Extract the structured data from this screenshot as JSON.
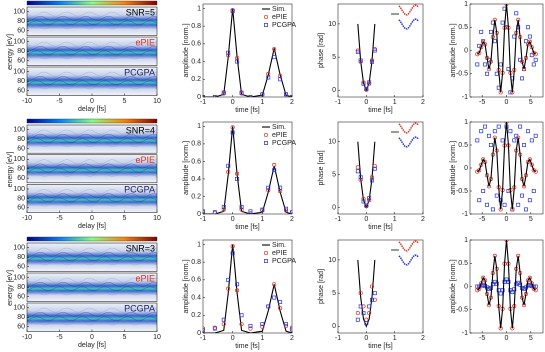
{
  "chart_data": [
    {
      "type": "spectrogram",
      "annotations": [
        "SNR=5",
        "ePIE",
        "PCGPA"
      ],
      "annotation_colors": [
        "#000000",
        "#e03020",
        "#1a1a60"
      ],
      "xlabel": "delay [fs]",
      "ylabel": "energy [eV]",
      "xlim": [
        -10,
        10
      ],
      "xticks": [
        -10,
        -5,
        0,
        5,
        10
      ],
      "ylim": [
        50,
        110
      ],
      "yticks": [
        60,
        80,
        100
      ]
    },
    {
      "type": "line",
      "xlabel": "time [fs]",
      "ylabel": "amplitude [norm.]",
      "xlim": [
        -1,
        2
      ],
      "xticks": [
        -1,
        0,
        1,
        2
      ],
      "ylim": [
        0,
        1.05
      ],
      "yticks": [
        0,
        0.2,
        0.4,
        0.6,
        0.8,
        1
      ],
      "legend": "upper right",
      "x": [
        -1,
        -0.6,
        -0.3,
        -0.15,
        0,
        0.15,
        0.3,
        0.6,
        1,
        1.2,
        1.4,
        1.6,
        1.8,
        2
      ],
      "series": [
        {
          "name": "Sim.",
          "color": "#000000",
          "style": "line",
          "values": [
            0,
            0,
            0.03,
            0.45,
            1,
            0.45,
            0.03,
            0,
            0.02,
            0.25,
            0.55,
            0.25,
            0.02,
            0
          ]
        },
        {
          "name": "ePIE",
          "color": "#e03020",
          "style": "markers",
          "marker": "o",
          "values": [
            0,
            0,
            0.04,
            0.47,
            0.98,
            0.44,
            0.04,
            0,
            0.03,
            0.26,
            0.54,
            0.24,
            0.03,
            0
          ]
        },
        {
          "name": "PCGPA",
          "color": "#2030e0",
          "style": "markers",
          "marker": "s",
          "values": [
            0,
            0,
            0.05,
            0.5,
            0.97,
            0.4,
            0.05,
            0,
            0.03,
            0.22,
            0.45,
            0.2,
            0.03,
            0
          ]
        }
      ]
    },
    {
      "type": "line",
      "xlabel": "time [fs]",
      "ylabel": "phase [rad]",
      "xlim": [
        -1,
        2
      ],
      "xticks": [
        -1,
        0,
        1,
        2
      ],
      "ylim": [
        -1,
        13
      ],
      "yticks": [
        0,
        5,
        10
      ],
      "x": [
        -0.3,
        -0.2,
        -0.1,
        0,
        0.1,
        0.2,
        0.3
      ],
      "series": [
        {
          "color": "#000000",
          "style": "line",
          "values": [
            10,
            4.4,
            1.1,
            0,
            1.1,
            4.4,
            10
          ]
        },
        {
          "color": "#e03020",
          "style": "markers",
          "marker": "o",
          "values": [
            6,
            4.3,
            1.2,
            0.1,
            1,
            4.5,
            6.2
          ]
        },
        {
          "color": "#2030e0",
          "style": "markers",
          "marker": "s",
          "values": [
            5.8,
            4.5,
            1,
            0.2,
            1.2,
            4.3,
            6
          ]
        }
      ]
    },
    {
      "type": "line",
      "ylabel": "amplitude [norm.]",
      "xlim": [
        -7.5,
        7.5
      ],
      "xticks": [
        -5,
        0,
        5
      ],
      "ylim": [
        -1,
        1
      ],
      "yticks": [
        -1,
        -0.5,
        0,
        0.5,
        1
      ],
      "x": [
        -6,
        -5.6,
        -5.2,
        -4.8,
        -4.4,
        -4,
        -3.6,
        -3.2,
        -2.8,
        -2.4,
        -2,
        -1.6,
        -1.2,
        -0.8,
        -0.4,
        0,
        0.4,
        0.8,
        1.2,
        1.6,
        2,
        2.4,
        2.8,
        3.2,
        3.6,
        4,
        4.4,
        4.8,
        5.2,
        5.6,
        6
      ],
      "series": [
        {
          "color": "#2030e0",
          "style": "markers",
          "marker": "s",
          "values": [
            -0.3,
            0.1,
            0.4,
            0.2,
            -0.3,
            -0.5,
            -0.2,
            0.4,
            0.6,
            0.2,
            -0.5,
            -0.8,
            -0.3,
            0.6,
            0.9,
            0.5,
            -0.4,
            -0.9,
            -0.6,
            0.3,
            0.8,
            0.5,
            -0.2,
            -0.6,
            -0.4,
            0.2,
            0.5,
            0.3,
            -0.1,
            -0.3,
            -0.2
          ]
        },
        {
          "color": "#e03020",
          "style": "markers",
          "marker": "o",
          "values": [
            -0.08,
            -0.05,
            0.07,
            0.19,
            0.13,
            -0.16,
            -0.4,
            -0.24,
            0.29,
            0.66,
            0.38,
            -0.42,
            -0.9,
            -0.48,
            0.49,
            1.0,
            0.49,
            -0.48,
            -0.9,
            -0.42,
            0.38,
            0.66,
            0.29,
            -0.24,
            -0.4,
            -0.16,
            0.13,
            0.19,
            0.07,
            -0.05,
            -0.08
          ]
        },
        {
          "color": "#000000",
          "style": "line",
          "values": [
            -0.08,
            -0.05,
            0.07,
            0.19,
            0.13,
            -0.16,
            -0.4,
            -0.24,
            0.29,
            0.66,
            0.38,
            -0.42,
            -0.9,
            -0.48,
            0.49,
            1.0,
            0.49,
            -0.48,
            -0.9,
            -0.42,
            0.38,
            0.66,
            0.29,
            -0.24,
            -0.4,
            -0.16,
            0.13,
            0.19,
            0.07,
            -0.05,
            -0.08
          ]
        }
      ]
    },
    {
      "type": "spectrogram",
      "annotations": [
        "SNR=4",
        "ePIE",
        "PCGPA"
      ],
      "annotation_colors": [
        "#000000",
        "#e03020",
        "#1a1a60"
      ],
      "xlabel": "delay [fs]",
      "ylabel": "energy [eV]",
      "xlim": [
        -10,
        10
      ],
      "xticks": [
        -10,
        -5,
        0,
        5,
        10
      ],
      "ylim": [
        50,
        110
      ],
      "yticks": [
        60,
        80,
        100
      ]
    },
    {
      "type": "line",
      "xlabel": "time [fs]",
      "ylabel": "amplitude [norm.]",
      "xlim": [
        -1,
        2
      ],
      "xticks": [
        -1,
        0,
        1,
        2
      ],
      "ylim": [
        0,
        1.05
      ],
      "yticks": [
        0,
        0.2,
        0.4,
        0.6,
        0.8,
        1
      ],
      "legend": "upper right",
      "x": [
        -1,
        -0.6,
        -0.3,
        -0.15,
        0,
        0.15,
        0.3,
        0.6,
        1,
        1.2,
        1.4,
        1.6,
        1.8,
        2
      ],
      "series": [
        {
          "name": "Sim.",
          "color": "#000000",
          "style": "line",
          "values": [
            0,
            0,
            0.03,
            0.45,
            1,
            0.45,
            0.03,
            0,
            0.02,
            0.25,
            0.55,
            0.25,
            0.02,
            0
          ]
        },
        {
          "name": "ePIE",
          "color": "#e03020",
          "style": "markers",
          "marker": "o",
          "values": [
            0.02,
            0.01,
            0.05,
            0.48,
            0.99,
            0.46,
            0.05,
            0.01,
            0.04,
            0.27,
            0.56,
            0.26,
            0.04,
            0.02
          ]
        },
        {
          "name": "PCGPA",
          "color": "#2030e0",
          "style": "markers",
          "marker": "s",
          "values": [
            0.03,
            0.02,
            0.08,
            0.55,
            0.93,
            0.4,
            0.08,
            0.03,
            0.05,
            0.3,
            0.5,
            0.3,
            0.06,
            0.02
          ]
        }
      ]
    },
    {
      "type": "line",
      "xlabel": "time [fs]",
      "ylabel": "phase [rad]",
      "xlim": [
        -1,
        2
      ],
      "xticks": [
        -1,
        0,
        1,
        2
      ],
      "ylim": [
        -1,
        13
      ],
      "yticks": [
        0,
        5,
        10
      ],
      "x": [
        -0.3,
        -0.2,
        -0.1,
        0,
        0.1,
        0.2,
        0.3
      ],
      "series": [
        {
          "color": "#000000",
          "style": "line",
          "values": [
            10,
            4.4,
            1.1,
            0,
            1.1,
            4.4,
            10
          ]
        },
        {
          "color": "#e03020",
          "style": "markers",
          "marker": "o",
          "values": [
            6.1,
            4.2,
            1.3,
            0.2,
            1.1,
            4.6,
            6.3
          ]
        },
        {
          "color": "#2030e0",
          "style": "markers",
          "marker": "s",
          "values": [
            5.5,
            4.6,
            0.9,
            0.3,
            1.4,
            4.1,
            5.9
          ]
        }
      ]
    },
    {
      "type": "line",
      "ylabel": "amplitude [norm.]",
      "xlim": [
        -7.5,
        7.5
      ],
      "xticks": [
        -5,
        0,
        5
      ],
      "ylim": [
        -1,
        1
      ],
      "yticks": [
        -1,
        -0.5,
        0,
        0.5,
        1
      ],
      "x": [
        -6,
        -5.6,
        -5.2,
        -4.8,
        -4.4,
        -4,
        -3.6,
        -3.2,
        -2.8,
        -2.4,
        -2,
        -1.6,
        -1.2,
        -0.8,
        -0.4,
        0,
        0.4,
        0.8,
        1.2,
        1.6,
        2,
        2.4,
        2.8,
        3.2,
        3.6,
        4,
        4.4,
        4.8,
        5.2,
        5.6,
        6
      ],
      "series": [
        {
          "color": "#2030e0",
          "style": "markers",
          "marker": "s",
          "values": [
            0.6,
            -0.7,
            0.8,
            -0.5,
            0.9,
            -0.8,
            0.7,
            0.5,
            -0.9,
            0.8,
            -0.6,
            0.9,
            -0.7,
            0.6,
            -0.8,
            0.9,
            -0.5,
            0.8,
            -0.9,
            0.6,
            0.7,
            -0.8,
            0.9,
            -0.6,
            0.5,
            -0.9,
            0.8,
            -0.7,
            0.6,
            -0.5,
            0.7
          ]
        },
        {
          "color": "#e03020",
          "style": "markers",
          "marker": "o",
          "values": [
            -0.08,
            -0.05,
            0.07,
            0.19,
            0.13,
            -0.16,
            -0.4,
            -0.24,
            0.29,
            0.66,
            0.38,
            -0.42,
            -0.9,
            -0.48,
            0.49,
            1.0,
            0.49,
            -0.48,
            -0.9,
            -0.42,
            0.38,
            0.66,
            0.29,
            -0.24,
            -0.4,
            -0.16,
            0.13,
            0.19,
            0.07,
            -0.05,
            -0.08
          ]
        },
        {
          "color": "#000000",
          "style": "line",
          "values": [
            -0.08,
            -0.05,
            0.07,
            0.19,
            0.13,
            -0.16,
            -0.4,
            -0.24,
            0.29,
            0.66,
            0.38,
            -0.42,
            -0.9,
            -0.48,
            0.49,
            1.0,
            0.49,
            -0.48,
            -0.9,
            -0.42,
            0.38,
            0.66,
            0.29,
            -0.24,
            -0.4,
            -0.16,
            0.13,
            0.19,
            0.07,
            -0.05,
            -0.08
          ]
        }
      ]
    },
    {
      "type": "spectrogram",
      "annotations": [
        "SNR=3",
        "ePIE",
        "PCGPA"
      ],
      "annotation_colors": [
        "#000000",
        "#e03020",
        "#1a1a60"
      ],
      "xlabel": "delay [fs]",
      "ylabel": "energy [eV]",
      "xlim": [
        -10,
        10
      ],
      "xticks": [
        -10,
        -5,
        0,
        5,
        10
      ],
      "ylim": [
        50,
        110
      ],
      "yticks": [
        60,
        80,
        100
      ]
    },
    {
      "type": "line",
      "xlabel": "time [fs]",
      "ylabel": "amplitude [norm.]",
      "xlim": [
        -1,
        2
      ],
      "xticks": [
        -1,
        0,
        1,
        2
      ],
      "ylim": [
        0,
        1.05
      ],
      "yticks": [
        0,
        0.2,
        0.4,
        0.6,
        0.8,
        1
      ],
      "legend": "upper right",
      "x": [
        -1,
        -0.6,
        -0.3,
        -0.15,
        0,
        0.15,
        0.3,
        0.6,
        1,
        1.2,
        1.4,
        1.6,
        1.8,
        2
      ],
      "series": [
        {
          "name": "Sim.",
          "color": "#000000",
          "style": "line",
          "values": [
            0,
            0,
            0.03,
            0.45,
            1,
            0.45,
            0.03,
            0,
            0.02,
            0.25,
            0.55,
            0.25,
            0.02,
            0
          ]
        },
        {
          "name": "ePIE",
          "color": "#e03020",
          "style": "markers",
          "marker": "o",
          "values": [
            0.05,
            0.06,
            0.1,
            0.5,
            0.98,
            0.48,
            0.1,
            0.05,
            0.07,
            0.3,
            0.55,
            0.28,
            0.08,
            0.06
          ]
        },
        {
          "name": "PCGPA",
          "color": "#2030e0",
          "style": "markers",
          "marker": "s",
          "values": [
            0.03,
            0.05,
            0.15,
            0.6,
            0.9,
            0.55,
            0.2,
            0.08,
            0.1,
            0.3,
            0.4,
            0.35,
            0.1,
            0.04
          ]
        }
      ]
    },
    {
      "type": "line",
      "xlabel": "time [fs]",
      "ylabel": "phase [rad]",
      "xlim": [
        -1,
        2
      ],
      "xticks": [
        -1,
        0,
        1,
        2
      ],
      "ylim": [
        -1,
        13
      ],
      "yticks": [
        0,
        5,
        10
      ],
      "x": [
        -0.3,
        -0.2,
        -0.1,
        0,
        0.1,
        0.2,
        0.3
      ],
      "series": [
        {
          "color": "#000000",
          "style": "line",
          "values": [
            10,
            4.4,
            1.1,
            0,
            1.1,
            4.4,
            10
          ]
        },
        {
          "color": "#e03020",
          "style": "markers",
          "marker": "o",
          "values": [
            2,
            5,
            3,
            1,
            2,
            6,
            4
          ]
        },
        {
          "color": "#2030e0",
          "style": "markers",
          "marker": "s",
          "values": [
            1,
            3,
            2,
            0.5,
            3,
            4,
            5
          ]
        }
      ]
    },
    {
      "type": "line",
      "ylabel": "amplitude [norm.]",
      "xlim": [
        -7.5,
        7.5
      ],
      "xticks": [
        -5,
        0,
        5
      ],
      "ylim": [
        -1,
        1
      ],
      "yticks": [
        -1,
        -0.5,
        0,
        0.5,
        1
      ],
      "x": [
        -6,
        -5.6,
        -5.2,
        -4.8,
        -4.4,
        -4,
        -3.6,
        -3.2,
        -2.8,
        -2.4,
        -2,
        -1.6,
        -1.2,
        -0.8,
        -0.4,
        0,
        0.4,
        0.8,
        1.2,
        1.6,
        2,
        2.4,
        2.8,
        3.2,
        3.6,
        4,
        4.4,
        4.8,
        5.2,
        5.6,
        6
      ],
      "series": [
        {
          "color": "#2030e0",
          "style": "markers",
          "marker": "s",
          "values": [
            0,
            0,
            0.02,
            0.03,
            0.01,
            -0.02,
            -0.05,
            -0.03,
            0.05,
            0.1,
            0.06,
            -0.08,
            -0.15,
            -0.08,
            0.1,
            0.15,
            0.1,
            -0.08,
            -0.12,
            -0.06,
            0.05,
            0.08,
            0.04,
            -0.03,
            -0.05,
            -0.02,
            0.02,
            0.03,
            0.01,
            0,
            0
          ]
        },
        {
          "color": "#e03020",
          "style": "markers",
          "marker": "o",
          "values": [
            -0.08,
            -0.05,
            0.07,
            0.19,
            0.13,
            -0.16,
            -0.4,
            -0.24,
            0.29,
            0.66,
            0.38,
            -0.42,
            -0.9,
            -0.48,
            0.49,
            1.0,
            0.49,
            -0.48,
            -0.9,
            -0.42,
            0.38,
            0.66,
            0.29,
            -0.24,
            -0.4,
            -0.16,
            0.13,
            0.19,
            0.07,
            -0.05,
            -0.08
          ]
        },
        {
          "color": "#000000",
          "style": "line",
          "values": [
            -0.08,
            -0.05,
            0.07,
            0.19,
            0.13,
            -0.16,
            -0.4,
            -0.24,
            0.29,
            0.66,
            0.38,
            -0.42,
            -0.9,
            -0.48,
            0.49,
            1.0,
            0.49,
            -0.48,
            -0.9,
            -0.42,
            0.38,
            0.66,
            0.29,
            -0.24,
            -0.4,
            -0.16,
            0.13,
            0.19,
            0.07,
            -0.05,
            -0.08
          ]
        }
      ]
    }
  ]
}
